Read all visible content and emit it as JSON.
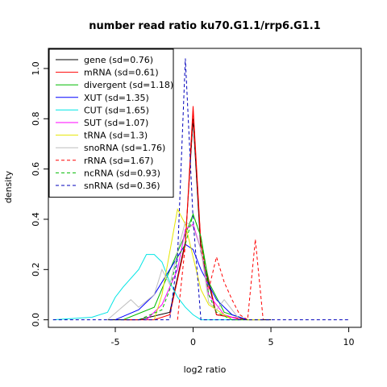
{
  "chart_data": {
    "type": "line",
    "title": "number read ratio ku70.G1.1/rrp6.G1.1",
    "xlabel": "log2 ratio",
    "ylabel": "density",
    "xlim": [
      -9.3,
      10.8
    ],
    "ylim": [
      -0.03,
      1.08
    ],
    "xticks": [
      -5,
      0,
      5,
      10
    ],
    "yticks": [
      0.0,
      0.2,
      0.4,
      0.6,
      0.8,
      1.0
    ],
    "ytick_labels": [
      "0.0",
      "0.2",
      "0.4",
      "0.6",
      "0.8",
      "1.0"
    ],
    "grid": false,
    "legend_position": "top-left",
    "series": [
      {
        "name": "gene (sd=0.76)",
        "color": "#000000",
        "dash": "solid",
        "x": [
          -5.5,
          -3.5,
          -1.5,
          -0.5,
          0.0,
          0.5,
          1.5,
          3.5,
          5.0
        ],
        "y": [
          0.0,
          0.0,
          0.03,
          0.31,
          0.8,
          0.27,
          0.02,
          0.0,
          0.0
        ]
      },
      {
        "name": "mRNA (sd=0.61)",
        "color": "#ff0000",
        "dash": "solid",
        "x": [
          -4.5,
          -2.5,
          -1.5,
          -0.5,
          0.0,
          0.5,
          1.5,
          3.5
        ],
        "y": [
          0.0,
          0.0,
          0.02,
          0.3,
          0.85,
          0.3,
          0.02,
          0.0
        ]
      },
      {
        "name": "divergent (sd=1.18)",
        "color": "#00bb00",
        "dash": "solid",
        "x": [
          -4.5,
          -2.5,
          -1.0,
          -0.5,
          0.0,
          0.5,
          1.0,
          2.0,
          3.5
        ],
        "y": [
          0.0,
          0.05,
          0.27,
          0.34,
          0.42,
          0.33,
          0.15,
          0.03,
          0.0
        ]
      },
      {
        "name": "XUT (sd=1.35)",
        "color": "#0000ff",
        "dash": "solid",
        "x": [
          -5.0,
          -3.5,
          -2.5,
          -1.0,
          -0.5,
          0.0,
          0.5,
          1.5,
          2.5,
          3.5
        ],
        "y": [
          0.0,
          0.04,
          0.1,
          0.25,
          0.3,
          0.28,
          0.2,
          0.08,
          0.02,
          0.0
        ]
      },
      {
        "name": "CUT (sd=1.65)",
        "color": "#00e5e5",
        "dash": "solid",
        "x": [
          -9.0,
          -6.5,
          -5.5,
          -5.0,
          -4.5,
          -3.5,
          -3.0,
          -2.5,
          -2.0,
          -1.5,
          -1.0,
          -0.5,
          0.0,
          0.5,
          1.0,
          1.5,
          2.0,
          3.0
        ],
        "y": [
          0.0,
          0.01,
          0.03,
          0.09,
          0.13,
          0.2,
          0.26,
          0.26,
          0.23,
          0.15,
          0.09,
          0.05,
          0.02,
          0.0,
          0.0,
          0.0,
          0.0,
          0.0
        ]
      },
      {
        "name": "SUT (sd=1.07)",
        "color": "#ff00ff",
        "dash": "solid",
        "x": [
          -3.0,
          -2.0,
          -1.0,
          -0.5,
          0.0,
          0.5,
          1.0,
          2.0,
          3.0
        ],
        "y": [
          0.0,
          0.06,
          0.2,
          0.36,
          0.38,
          0.28,
          0.1,
          0.02,
          0.0
        ]
      },
      {
        "name": "tRNA (sd=1.3)",
        "color": "#e5e500",
        "dash": "solid",
        "x": [
          -2.5,
          -2.0,
          -1.0,
          -0.5,
          0.0,
          0.5,
          1.0,
          2.0,
          2.5,
          4.5
        ],
        "y": [
          0.0,
          0.1,
          0.44,
          0.38,
          0.25,
          0.12,
          0.06,
          0.02,
          0.0,
          0.0
        ]
      },
      {
        "name": "snoRNA (sd=1.76)",
        "color": "#bebebe",
        "dash": "solid",
        "x": [
          -5.5,
          -4.0,
          -3.5,
          -2.5,
          -2.0,
          -1.5,
          -1.0,
          -0.5,
          0.0,
          0.5,
          1.0,
          1.5,
          2.0,
          2.5,
          3.0
        ],
        "y": [
          0.0,
          0.08,
          0.05,
          0.1,
          0.2,
          0.14,
          0.27,
          0.39,
          0.37,
          0.28,
          0.07,
          0.04,
          0.08,
          0.04,
          0.0
        ]
      },
      {
        "name": "rRNA (sd=1.67)",
        "color": "#ff0000",
        "dash": "dashed",
        "x": [
          -1.0,
          -0.5,
          0.0,
          0.5,
          1.0,
          1.5,
          2.0,
          2.5,
          3.0,
          3.5,
          4.0,
          4.5
        ],
        "y": [
          0.0,
          0.3,
          0.82,
          0.3,
          0.12,
          0.25,
          0.15,
          0.08,
          0.02,
          0.0,
          0.32,
          0.0
        ]
      },
      {
        "name": "ncRNA (sd=0.93)",
        "color": "#00bb00",
        "dash": "dashed",
        "x": [
          -3.5,
          -2.0,
          -1.5,
          -1.0,
          -0.5,
          0.0,
          0.5,
          1.0,
          1.5,
          2.5,
          3.5
        ],
        "y": [
          0.0,
          0.04,
          0.12,
          0.25,
          0.3,
          0.42,
          0.33,
          0.1,
          0.03,
          0.0,
          0.0
        ]
      },
      {
        "name": "snRNA (sd=0.36)",
        "color": "#0000bb",
        "dash": "dashed",
        "x": [
          -9.0,
          -1.5,
          -1.0,
          -0.5,
          0.0,
          0.5,
          10.0
        ],
        "y": [
          0.0,
          0.0,
          0.25,
          1.04,
          0.4,
          0.0,
          0.0
        ]
      }
    ]
  }
}
